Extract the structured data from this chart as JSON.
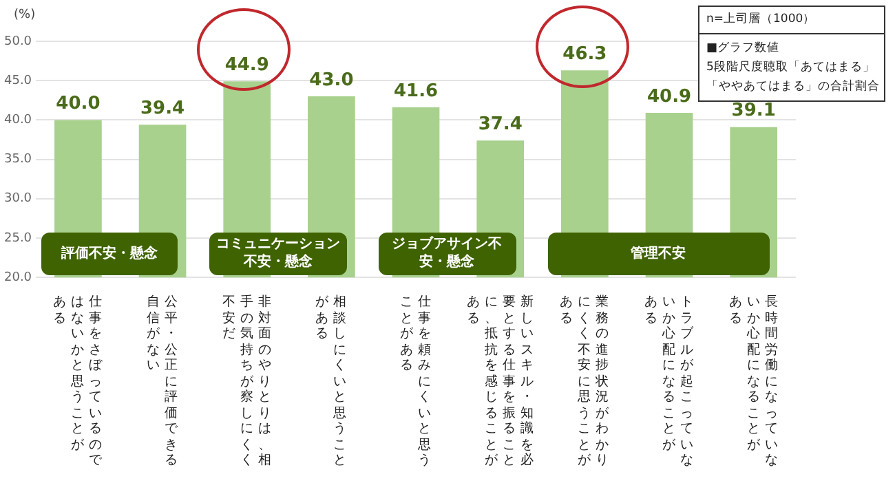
{
  "chart_data": {
    "type": "bar",
    "ylabel": "(%)",
    "categories": [
      "仕事をさぼっているのではないかと思うことがある",
      "公平・公正に評価できる自信がない",
      "非対面のやりとりは、相手の気持ちが察しにくく不安だ",
      "相談しにくいと思うことがある",
      "仕事を頼みにくいと思うことがある",
      "新しいスキル・知識を必要とする仕事を振ることに、抵抗を感じることがある",
      "業務の進捗状況がわかりにくく不安に思うことがある",
      "トラブルが起こっていないか心配になることがある",
      "長時間労働になっていないか心配になることがある"
    ],
    "values": [
      40.0,
      39.4,
      44.9,
      43.0,
      41.6,
      37.4,
      46.3,
      40.9,
      39.1
    ],
    "value_labels": [
      "40.0",
      "39.4",
      "44.9",
      "43.0",
      "41.6",
      "37.4",
      "46.3",
      "40.9",
      "39.1"
    ],
    "color": "#a9d18e",
    "grid": "y",
    "ylim": [
      20,
      50
    ],
    "yticks": [
      {
        "value": 20,
        "label": "20.0"
      },
      {
        "value": 25,
        "label": "25.0"
      },
      {
        "value": 30,
        "label": "30.0"
      },
      {
        "value": 35,
        "label": "35.0"
      },
      {
        "value": 40,
        "label": "40.0"
      },
      {
        "value": 45,
        "label": "45.0"
      },
      {
        "value": 50,
        "label": "50.0"
      }
    ],
    "annotations": [
      "評価不安・懸念",
      "コミュニケーション不安・懸念",
      "ジョブアサイン不安・懸念",
      "管理不安",
      "n=上司層（1000）",
      "■グラフ数値",
      "5段階尺度聴取「あてはまる」",
      "「ややあてはまる」の合計割合"
    ]
  }
}
